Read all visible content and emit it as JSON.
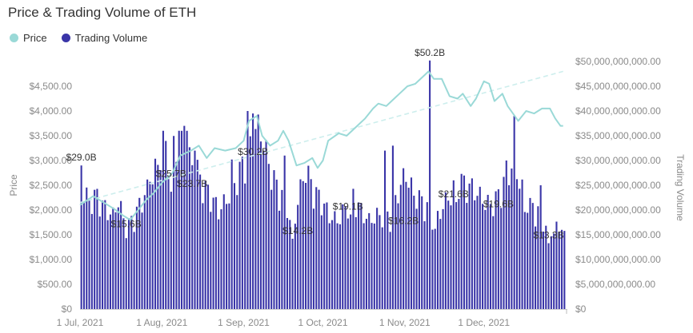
{
  "chart_data": {
    "type": "bar+line",
    "title": "Price & Trading Volume of ETH",
    "colors": {
      "price": "#9ad9d7",
      "volume": "#3a35a8",
      "trend": "#cdeeed"
    },
    "legend": [
      {
        "name": "Price",
        "color": "#9ad9d7"
      },
      {
        "name": "Trading Volume",
        "color": "#3a35a8"
      }
    ],
    "legend_position": "top-left",
    "y_left": {
      "label": "Price",
      "range": [
        0,
        5000
      ],
      "ticks": [
        "$0",
        "$500.00",
        "$1,000.00",
        "$1,500.00",
        "$2,000.00",
        "$2,500.00",
        "$3,000.00",
        "$3,500.00",
        "$4,000.00",
        "$4,500.00"
      ]
    },
    "y_right": {
      "label": "Trading Volume",
      "range": [
        0,
        50000000000
      ],
      "ticks": [
        "$0",
        "$5,000,000,000.00",
        "$10,000,000,000.00",
        "$15,000,000,000.00",
        "$20,000,000,000.00",
        "$25,000,000,000.00",
        "$30,000,000,000.00",
        "$35,000,000,000.00",
        "$40,000,000,000.00",
        "$45,000,000,000.00",
        "$50,000,000,000.00"
      ]
    },
    "x_axis": {
      "start": "2021-07-01",
      "end": "2021-12-31",
      "ticks": [
        {
          "date": "2021-07-01",
          "label": "1 Jul, 2021"
        },
        {
          "date": "2021-08-01",
          "label": "1 Aug, 2021"
        },
        {
          "date": "2021-09-01",
          "label": "1 Sep, 2021"
        },
        {
          "date": "2021-10-01",
          "label": "1 Oct, 2021"
        },
        {
          "date": "2021-11-01",
          "label": "1 Nov, 2021"
        },
        {
          "date": "2021-12-01",
          "label": "1 Dec, 2021"
        }
      ]
    },
    "grid": false,
    "price_series": [
      {
        "date": "2021-07-01",
        "value": 2100
      },
      {
        "date": "2021-07-06",
        "value": 2280
      },
      {
        "date": "2021-07-10",
        "value": 2150
      },
      {
        "date": "2021-07-14",
        "value": 2020
      },
      {
        "date": "2021-07-17",
        "value": 1900
      },
      {
        "date": "2021-07-20",
        "value": 1800
      },
      {
        "date": "2021-07-23",
        "value": 2000
      },
      {
        "date": "2021-07-26",
        "value": 2200
      },
      {
        "date": "2021-07-29",
        "value": 2350
      },
      {
        "date": "2021-08-01",
        "value": 2550
      },
      {
        "date": "2021-08-05",
        "value": 2750
      },
      {
        "date": "2021-08-08",
        "value": 3100
      },
      {
        "date": "2021-08-12",
        "value": 3200
      },
      {
        "date": "2021-08-15",
        "value": 3300
      },
      {
        "date": "2021-08-18",
        "value": 3050
      },
      {
        "date": "2021-08-21",
        "value": 3250
      },
      {
        "date": "2021-08-25",
        "value": 3200
      },
      {
        "date": "2021-08-29",
        "value": 3250
      },
      {
        "date": "2021-09-01",
        "value": 3400
      },
      {
        "date": "2021-09-03",
        "value": 3800
      },
      {
        "date": "2021-09-06",
        "value": 3900
      },
      {
        "date": "2021-09-08",
        "value": 3500
      },
      {
        "date": "2021-09-11",
        "value": 3300
      },
      {
        "date": "2021-09-14",
        "value": 3400
      },
      {
        "date": "2021-09-16",
        "value": 3600
      },
      {
        "date": "2021-09-18",
        "value": 3400
      },
      {
        "date": "2021-09-21",
        "value": 2900
      },
      {
        "date": "2021-09-24",
        "value": 2950
      },
      {
        "date": "2021-09-27",
        "value": 3050
      },
      {
        "date": "2021-09-29",
        "value": 2850
      },
      {
        "date": "2021-10-01",
        "value": 3000
      },
      {
        "date": "2021-10-03",
        "value": 3400
      },
      {
        "date": "2021-10-07",
        "value": 3550
      },
      {
        "date": "2021-10-10",
        "value": 3500
      },
      {
        "date": "2021-10-14",
        "value": 3700
      },
      {
        "date": "2021-10-17",
        "value": 3850
      },
      {
        "date": "2021-10-20",
        "value": 4050
      },
      {
        "date": "2021-10-22",
        "value": 4150
      },
      {
        "date": "2021-10-25",
        "value": 4100
      },
      {
        "date": "2021-10-28",
        "value": 4250
      },
      {
        "date": "2021-10-30",
        "value": 4350
      },
      {
        "date": "2021-11-02",
        "value": 4500
      },
      {
        "date": "2021-11-05",
        "value": 4550
      },
      {
        "date": "2021-11-08",
        "value": 4700
      },
      {
        "date": "2021-11-10",
        "value": 4800
      },
      {
        "date": "2021-11-12",
        "value": 4650
      },
      {
        "date": "2021-11-15",
        "value": 4650
      },
      {
        "date": "2021-11-18",
        "value": 4300
      },
      {
        "date": "2021-11-21",
        "value": 4250
      },
      {
        "date": "2021-11-23",
        "value": 4350
      },
      {
        "date": "2021-11-26",
        "value": 4100
      },
      {
        "date": "2021-11-28",
        "value": 4250
      },
      {
        "date": "2021-12-01",
        "value": 4600
      },
      {
        "date": "2021-12-03",
        "value": 4550
      },
      {
        "date": "2021-12-05",
        "value": 4200
      },
      {
        "date": "2021-12-08",
        "value": 4350
      },
      {
        "date": "2021-12-10",
        "value": 4100
      },
      {
        "date": "2021-12-12",
        "value": 3950
      },
      {
        "date": "2021-12-14",
        "value": 3800
      },
      {
        "date": "2021-12-17",
        "value": 4000
      },
      {
        "date": "2021-12-20",
        "value": 3950
      },
      {
        "date": "2021-12-23",
        "value": 4050
      },
      {
        "date": "2021-12-26",
        "value": 4050
      },
      {
        "date": "2021-12-28",
        "value": 3850
      },
      {
        "date": "2021-12-30",
        "value": 3700
      },
      {
        "date": "2021-12-31",
        "value": 3700
      }
    ],
    "trendline": [
      {
        "date": "2021-07-01",
        "value": 2150
      },
      {
        "date": "2021-12-31",
        "value": 4800
      }
    ],
    "volume_labels": [
      {
        "date": "2021-07-01",
        "text": "$29.0B"
      },
      {
        "date": "2021-07-18",
        "text": "$15.6B"
      },
      {
        "date": "2021-08-04",
        "text": "$25.7B"
      },
      {
        "date": "2021-08-12",
        "text": "$23.7B"
      },
      {
        "date": "2021-09-04",
        "text": "$30.2B"
      },
      {
        "date": "2021-09-21",
        "text": "$14.2B"
      },
      {
        "date": "2021-10-10",
        "text": "$19.1B"
      },
      {
        "date": "2021-10-31",
        "text": "$16.2B"
      },
      {
        "date": "2021-11-10",
        "text": "$50.2B"
      },
      {
        "date": "2021-11-19",
        "text": "$21.6B"
      },
      {
        "date": "2021-12-06",
        "text": "$19.6B"
      },
      {
        "date": "2021-12-25",
        "text": "$13.3B"
      }
    ]
  }
}
